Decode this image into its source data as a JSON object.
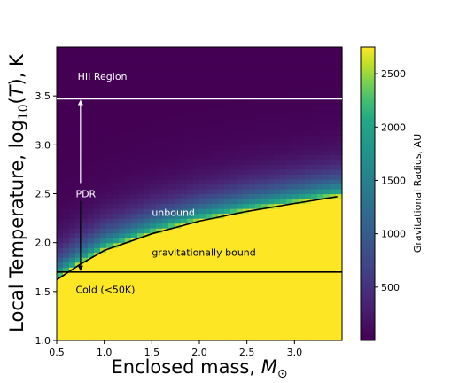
{
  "chart_data": {
    "type": "heatmap",
    "xlabel": "Enclosed mass, ",
    "xlabel_symbol": "M",
    "xlabel_sub": "⊙",
    "ylabel_prefix": "Local Temperature, log",
    "ylabel_sub": "10",
    "ylabel_mid": "(",
    "ylabel_var": "T",
    "ylabel_suffix": "), K",
    "xlim": [
      0.5,
      3.5
    ],
    "ylim": [
      1.0,
      4.0
    ],
    "xticks": [
      0.5,
      1.0,
      1.5,
      2.0,
      2.5,
      3.0
    ],
    "xtick_labels": [
      "0.5",
      "1.0",
      "1.5",
      "2.0",
      "2.5",
      "3.0"
    ],
    "yticks": [
      1.0,
      1.5,
      2.0,
      2.5,
      3.0,
      3.5
    ],
    "ytick_labels": [
      "1.0",
      "1.5",
      "2.0",
      "2.5",
      "3.0",
      "3.5"
    ],
    "colorbar": {
      "label": "Gravitational Radius, AU",
      "range": [
        0,
        2750
      ],
      "ticks": [
        500,
        1000,
        1500,
        2000,
        2500
      ],
      "tick_labels": [
        "500",
        "1000",
        "1500",
        "2000",
        "2500"
      ],
      "colormap": "viridis"
    },
    "horizontal_lines": [
      {
        "y": 3.47,
        "color": "#ffffff"
      },
      {
        "y": 1.7,
        "color": "#000000"
      }
    ],
    "bound_curve": {
      "description_label": "",
      "points": [
        [
          0.5,
          1.62
        ],
        [
          0.75,
          1.78
        ],
        [
          1.0,
          1.92
        ],
        [
          1.5,
          2.09
        ],
        [
          2.0,
          2.22
        ],
        [
          2.5,
          2.32
        ],
        [
          3.0,
          2.4
        ],
        [
          3.45,
          2.47
        ]
      ]
    },
    "arrow": {
      "x": 0.75,
      "from_y": 3.47,
      "to_y": 1.7
    },
    "annotations": [
      {
        "text": "HII Region",
        "x": 0.72,
        "y": 3.7,
        "color": "#ffffff"
      },
      {
        "text": "PDR",
        "x": 0.7,
        "y": 2.5,
        "color": "#ffffff"
      },
      {
        "text": "unbound",
        "x": 1.5,
        "y": 2.31,
        "color": "#ffffff"
      },
      {
        "text": "gravitationally bound",
        "x": 1.5,
        "y": 1.9,
        "color": "#000000"
      },
      {
        "text": "Cold (<50K)",
        "x": 0.7,
        "y": 1.52,
        "color": "#000000"
      }
    ]
  }
}
